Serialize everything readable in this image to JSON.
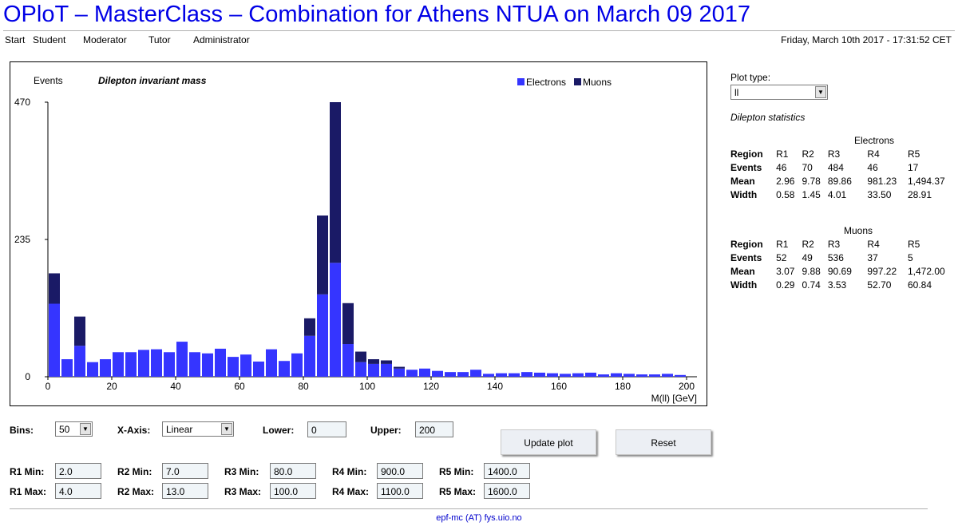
{
  "page_title": "OPloT – MasterClass – Combination for Athens NTUA on March 09 2017",
  "nav": [
    "Start",
    "Student",
    "Moderator",
    "Tutor",
    "Administrator"
  ],
  "datetime": "Friday, March 10th 2017 - 17:31:52 CET",
  "chart_data": {
    "type": "bar",
    "stacked": true,
    "title": "Dilepton invariant mass",
    "ylabel": "Events",
    "xlabel": "M(ll) [GeV]",
    "xlim": [
      0,
      200
    ],
    "ylim": [
      0,
      470
    ],
    "xticks": [
      "0",
      "20",
      "40",
      "60",
      "80",
      "100",
      "120",
      "140",
      "160",
      "180",
      "200"
    ],
    "yticks": [
      "0",
      "235",
      "470"
    ],
    "bin_width": 4,
    "x": [
      2,
      6,
      10,
      14,
      18,
      22,
      26,
      30,
      34,
      38,
      42,
      46,
      50,
      54,
      58,
      62,
      66,
      70,
      74,
      78,
      82,
      86,
      90,
      94,
      98,
      102,
      106,
      110,
      114,
      118,
      122,
      126,
      130,
      134,
      138,
      142,
      146,
      150,
      154,
      158,
      162,
      166,
      170,
      174,
      178,
      182,
      186,
      190,
      194,
      198
    ],
    "legend": {
      "position": "top-right"
    },
    "series": [
      {
        "name": "Electrons",
        "color": "#3535ff",
        "values": [
          125,
          30,
          53,
          25,
          30,
          42,
          42,
          46,
          47,
          42,
          60,
          42,
          40,
          48,
          34,
          38,
          26,
          47,
          27,
          40,
          70,
          141,
          195,
          56,
          25,
          22,
          22,
          14,
          12,
          14,
          10,
          8,
          8,
          12,
          5,
          6,
          6,
          8,
          7,
          6,
          5,
          6,
          7,
          4,
          6,
          5,
          4,
          4,
          5,
          3
        ]
      },
      {
        "name": "Muons",
        "color": "#1a1a66",
        "values": [
          52,
          0,
          50,
          0,
          0,
          0,
          0,
          0,
          0,
          0,
          0,
          0,
          0,
          0,
          0,
          0,
          0,
          0,
          0,
          0,
          30,
          135,
          275,
          70,
          18,
          8,
          6,
          3,
          0,
          0,
          0,
          0,
          0,
          0,
          0,
          0,
          0,
          0,
          0,
          0,
          0,
          0,
          0,
          0,
          0,
          0,
          0,
          0,
          0,
          0
        ]
      }
    ]
  },
  "side": {
    "plot_type_label": "Plot type:",
    "plot_type_value": "ll",
    "stats_title": "Dilepton statistics",
    "electrons": {
      "caption": "Electrons",
      "header": [
        "Region",
        "R1",
        "R2",
        "R3",
        "R4",
        "R5"
      ],
      "rows": [
        [
          "Events",
          "46",
          "70",
          "484",
          "46",
          "17"
        ],
        [
          "Mean",
          "2.96",
          "9.78",
          "89.86",
          "981.23",
          "1,494.37"
        ],
        [
          "Width",
          "0.58",
          "1.45",
          "4.01",
          "33.50",
          "28.91"
        ]
      ]
    },
    "muons": {
      "caption": "Muons",
      "header": [
        "Region",
        "R1",
        "R2",
        "R3",
        "R4",
        "R5"
      ],
      "rows": [
        [
          "Events",
          "52",
          "49",
          "536",
          "37",
          "5"
        ],
        [
          "Mean",
          "3.07",
          "9.88",
          "90.69",
          "997.22",
          "1,472.00"
        ],
        [
          "Width",
          "0.29",
          "0.74",
          "3.53",
          "52.70",
          "60.84"
        ]
      ]
    }
  },
  "controls": {
    "bins_label": "Bins:",
    "bins_value": "50",
    "xaxis_label": "X-Axis:",
    "xaxis_value": "Linear",
    "lower_label": "Lower:",
    "lower_value": "0",
    "upper_label": "Upper:",
    "upper_value": "200",
    "update_button": "Update plot",
    "reset_button": "Reset",
    "r1min_label": "R1 Min:",
    "r1min": "2.0",
    "r1max_label": "R1 Max:",
    "r1max": "4.0",
    "r2min_label": "R2 Min:",
    "r2min": "7.0",
    "r2max_label": "R2 Max:",
    "r2max": "13.0",
    "r3min_label": "R3 Min:",
    "r3min": "80.0",
    "r3max_label": "R3 Max:",
    "r3max": "100.0",
    "r4min_label": "R4 Min:",
    "r4min": "900.0",
    "r4max_label": "R4 Max:",
    "r4max": "1100.0",
    "r5min_label": "R5 Min:",
    "r5min": "1400.0",
    "r5max_label": "R5 Max:",
    "r5max": "1600.0"
  },
  "footer": "epf-mc (AT) fys.uio.no"
}
